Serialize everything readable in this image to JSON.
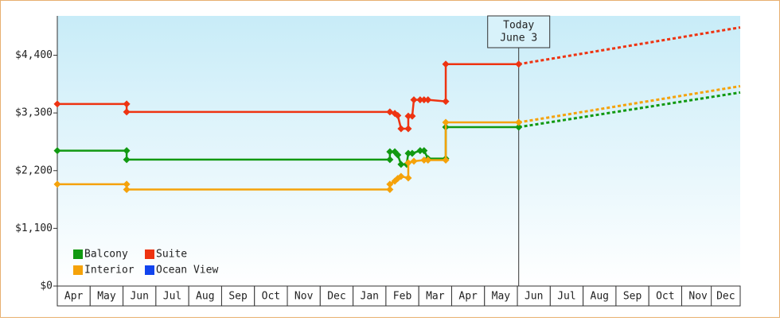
{
  "chart_data": {
    "type": "line",
    "xlim": [
      0,
      20.78
    ],
    "ylim": [
      0,
      5150
    ],
    "yticks": [
      {
        "value": 0,
        "label": "$0"
      },
      {
        "value": 1100,
        "label": "$1,100"
      },
      {
        "value": 2200,
        "label": "$2,200"
      },
      {
        "value": 3300,
        "label": "$3,300"
      },
      {
        "value": 4400,
        "label": "$4,400"
      }
    ],
    "xticks": [
      {
        "value": 0.5,
        "label": "Apr"
      },
      {
        "value": 1.5,
        "label": "May"
      },
      {
        "value": 2.5,
        "label": "Jun"
      },
      {
        "value": 3.5,
        "label": "Jul"
      },
      {
        "value": 4.5,
        "label": "Aug"
      },
      {
        "value": 5.5,
        "label": "Sep"
      },
      {
        "value": 6.5,
        "label": "Oct"
      },
      {
        "value": 7.5,
        "label": "Nov"
      },
      {
        "value": 8.5,
        "label": "Dec"
      },
      {
        "value": 9.5,
        "label": "Jan"
      },
      {
        "value": 10.5,
        "label": "Feb"
      },
      {
        "value": 11.5,
        "label": "Mar"
      },
      {
        "value": 12.5,
        "label": "Apr"
      },
      {
        "value": 13.5,
        "label": "May"
      },
      {
        "value": 14.5,
        "label": "Jun"
      },
      {
        "value": 15.5,
        "label": "Jul"
      },
      {
        "value": 16.5,
        "label": "Aug"
      },
      {
        "value": 17.5,
        "label": "Sep"
      },
      {
        "value": 18.5,
        "label": "Oct"
      },
      {
        "value": 19.5,
        "label": "Nov"
      },
      {
        "value": 20.4,
        "label": "Dec"
      }
    ],
    "annotation": {
      "x": 14.04,
      "lines": [
        "Today",
        "June 3"
      ]
    },
    "series": [
      {
        "name": "Balcony",
        "color": "#119911",
        "x": [
          0,
          2.11,
          2.11,
          10.12,
          10.12,
          10.27,
          10.36,
          10.46,
          10.63,
          10.68,
          10.8,
          11.04,
          11.16,
          11.28,
          11.82,
          11.82,
          14.04
        ],
        "values": [
          2580,
          2580,
          2410,
          2410,
          2560,
          2560,
          2500,
          2320,
          2320,
          2530,
          2530,
          2580,
          2580,
          2430,
          2430,
          3030,
          3030
        ],
        "projection": {
          "x": [
            14.04,
            20.78
          ],
          "values": [
            3030,
            3690
          ]
        }
      },
      {
        "name": "Suite",
        "color": "#ee3311",
        "x": [
          0,
          2.11,
          2.11,
          10.12,
          10.27,
          10.36,
          10.46,
          10.68,
          10.68,
          10.8,
          10.85,
          11.04,
          11.16,
          11.28,
          11.82,
          11.82,
          14.04
        ],
        "values": [
          3470,
          3470,
          3320,
          3320,
          3290,
          3250,
          3000,
          3000,
          3240,
          3240,
          3550,
          3550,
          3550,
          3550,
          3520,
          4230,
          4230
        ],
        "projection": {
          "x": [
            14.04,
            20.78
          ],
          "values": [
            4230,
            4930
          ]
        }
      },
      {
        "name": "Interior",
        "color": "#f5a20a",
        "x": [
          0,
          2.11,
          2.11,
          10.12,
          10.12,
          10.27,
          10.36,
          10.46,
          10.68,
          10.68,
          10.85,
          11.16,
          11.28,
          11.82,
          11.82,
          14.04
        ],
        "values": [
          1940,
          1940,
          1840,
          1840,
          1940,
          2000,
          2050,
          2090,
          2060,
          2350,
          2380,
          2400,
          2400,
          2400,
          3120,
          3120
        ],
        "projection": {
          "x": [
            14.04,
            20.78
          ],
          "values": [
            3120,
            3810
          ]
        }
      },
      {
        "name": "Ocean View",
        "color": "#1144ee",
        "x": [],
        "values": []
      }
    ]
  }
}
